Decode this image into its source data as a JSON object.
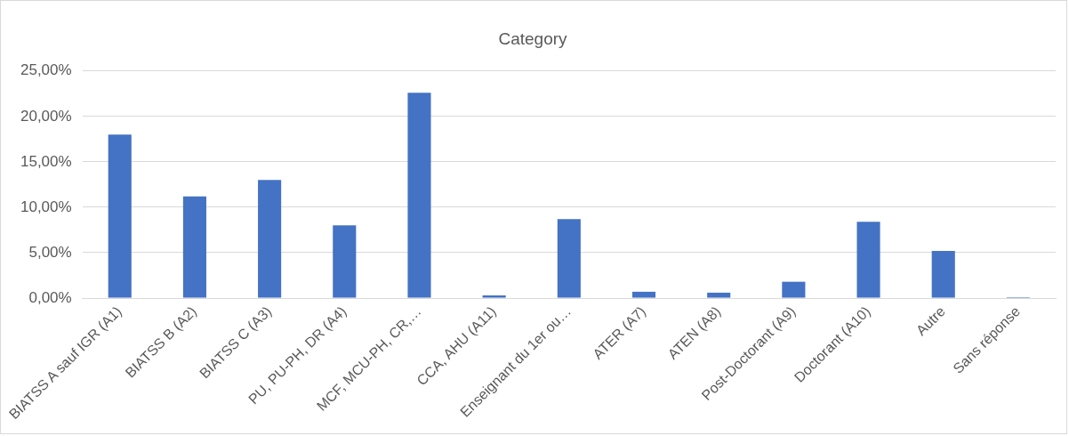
{
  "chart_data": {
    "type": "bar",
    "title": "Category",
    "categories": [
      "BIATSS A sauf IGR (A1)",
      "BIATSS B (A2)",
      "BIATSS C (A3)",
      "PU, PU-PH, DR (A4)",
      "MCF, MCU-PH, CR,…",
      "CCA, AHU (A11)",
      "Enseignant du 1er ou…",
      "ATER (A7)",
      "ATEN (A8)",
      "Post-Doctorant (A9)",
      "Doctorant (A10)",
      "Autre",
      "Sans réponse"
    ],
    "values": [
      18.0,
      11.2,
      13.0,
      8.0,
      22.6,
      0.3,
      8.7,
      0.7,
      0.6,
      1.8,
      8.4,
      5.2,
      0.1
    ],
    "color": "#4472c4",
    "ylim": [
      0,
      25
    ],
    "yticks": [
      {
        "value": 0,
        "label": "0,00%"
      },
      {
        "value": 5,
        "label": "5,00%"
      },
      {
        "value": 10,
        "label": "10,00%"
      },
      {
        "value": 15,
        "label": "15,00%"
      },
      {
        "value": 20,
        "label": "20,00%"
      },
      {
        "value": 25,
        "label": "25,00%"
      }
    ],
    "grid": "y",
    "legend": false
  }
}
